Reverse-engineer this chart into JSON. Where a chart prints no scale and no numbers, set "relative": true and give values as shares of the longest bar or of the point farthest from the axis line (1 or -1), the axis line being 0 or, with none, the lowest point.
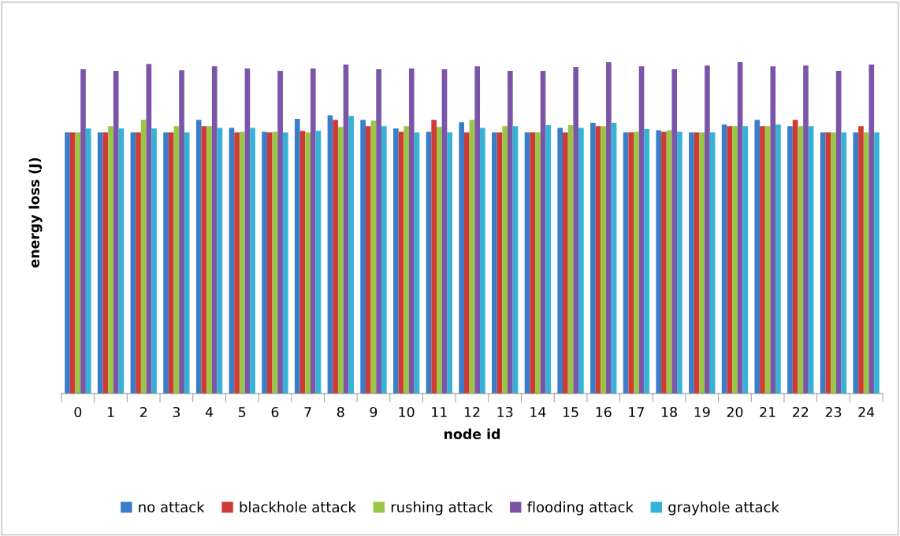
{
  "chart_data": {
    "type": "bar",
    "relative": true,
    "xlabel": "node id",
    "ylabel": "energy loss (J)",
    "categories": [
      "0",
      "1",
      "2",
      "3",
      "4",
      "5",
      "6",
      "7",
      "8",
      "9",
      "10",
      "11",
      "12",
      "13",
      "14",
      "15",
      "16",
      "17",
      "18",
      "19",
      "20",
      "21",
      "22",
      "23",
      "24"
    ],
    "legend": "bottom",
    "series": [
      {
        "name": "no attack",
        "color": "#3a7dc9",
        "values": [
          0.788,
          0.788,
          0.788,
          0.788,
          0.826,
          0.802,
          0.79,
          0.829,
          0.84,
          0.826,
          0.8,
          0.79,
          0.819,
          0.788,
          0.788,
          0.802,
          0.817,
          0.788,
          0.795,
          0.788,
          0.812,
          0.826,
          0.807,
          0.788,
          0.788
        ]
      },
      {
        "name": "blackhole attack",
        "color": "#cf3a35",
        "values": [
          0.788,
          0.788,
          0.788,
          0.788,
          0.807,
          0.788,
          0.788,
          0.793,
          0.826,
          0.807,
          0.79,
          0.826,
          0.788,
          0.788,
          0.788,
          0.788,
          0.807,
          0.788,
          0.79,
          0.788,
          0.807,
          0.807,
          0.826,
          0.788,
          0.807
        ]
      },
      {
        "name": "rushing attack",
        "color": "#9bc545",
        "values": [
          0.788,
          0.807,
          0.826,
          0.807,
          0.807,
          0.79,
          0.79,
          0.788,
          0.805,
          0.824,
          0.807,
          0.805,
          0.826,
          0.807,
          0.788,
          0.81,
          0.807,
          0.79,
          0.795,
          0.788,
          0.807,
          0.807,
          0.807,
          0.788,
          0.788
        ]
      },
      {
        "name": "flooding attack",
        "color": "#7b56a8",
        "values": [
          0.979,
          0.974,
          0.995,
          0.976,
          0.988,
          0.981,
          0.974,
          0.981,
          0.993,
          0.979,
          0.981,
          0.979,
          0.988,
          0.974,
          0.974,
          0.986,
          1.0,
          0.988,
          0.979,
          0.99,
          1.0,
          0.988,
          0.99,
          0.974,
          0.993
        ]
      },
      {
        "name": "grayhole attack",
        "color": "#35b2d5",
        "values": [
          0.8,
          0.8,
          0.8,
          0.788,
          0.802,
          0.802,
          0.788,
          0.793,
          0.838,
          0.807,
          0.788,
          0.788,
          0.802,
          0.807,
          0.81,
          0.802,
          0.817,
          0.798,
          0.79,
          0.788,
          0.807,
          0.812,
          0.807,
          0.788,
          0.788
        ]
      }
    ]
  }
}
